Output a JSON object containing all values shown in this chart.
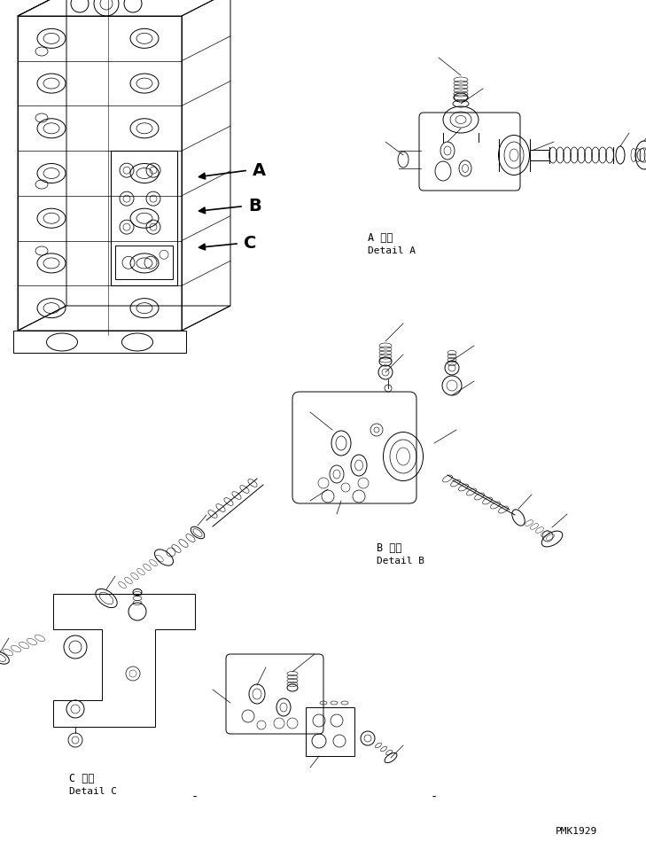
{
  "title": "",
  "background_color": "#ffffff",
  "line_color": "#000000",
  "label_A_kanji": "A 詳細",
  "label_A_en": "Detail A",
  "label_B_kanji": "B 詳細",
  "label_B_en": "Detail B",
  "label_C_kanji": "C 詳細",
  "label_C_en": "Detail C",
  "watermark": "PMK1929",
  "figsize": [
    7.29,
    9.5
  ],
  "dpi": 100
}
